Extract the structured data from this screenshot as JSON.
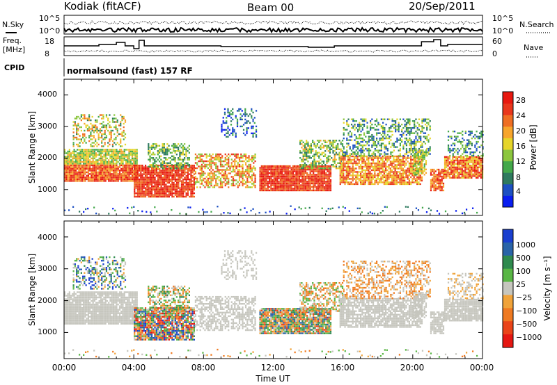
{
  "header": {
    "station": "Kodiak (fitACF)",
    "beam": "Beam 00",
    "date": "20/Sep/2011"
  },
  "strip_labels": {
    "nsky": "N.Sky",
    "nsearch": "N.Search",
    "freq": "Freq.",
    "freq_unit": "[MHz]",
    "nave": "Nave",
    "cpid": "CPID",
    "cpid_text": "normalsound (fast) 157 RF",
    "noise_ticks_left": [
      "10^5",
      "10^0"
    ],
    "noise_ticks_right": [
      "10^5",
      "10^0"
    ],
    "freq_ticks": [
      "18",
      "8"
    ],
    "nave_ticks": [
      "60",
      "0"
    ]
  },
  "xaxis": {
    "label": "Time UT",
    "ticks": [
      "00:00",
      "04:00",
      "08:00",
      "12:00",
      "16:00",
      "20:00",
      "00:00"
    ]
  },
  "chart_data": [
    {
      "type": "heatmap",
      "name": "power",
      "ylabel": "Slant Range [km]",
      "xlim_hours": [
        0,
        24
      ],
      "ylim": [
        180,
        4500
      ],
      "yticks": [
        "1000",
        "2000",
        "3000",
        "4000"
      ],
      "colorbar_label": "Power [dB]",
      "colorbar_ticks": [
        "4",
        "8",
        "12",
        "16",
        "20",
        "24",
        "28"
      ],
      "colors": [
        "#0a1ef0",
        "#1d50c2",
        "#2e7a5e",
        "#43a84a",
        "#8cc63e",
        "#e6d52a",
        "#f7a52c",
        "#ef6e23",
        "#e9371c",
        "#e8180f"
      ]
    },
    {
      "type": "heatmap",
      "name": "velocity",
      "ylabel": "Slant Range [km]",
      "xlim_hours": [
        0,
        24
      ],
      "ylim": [
        180,
        4500
      ],
      "yticks": [
        "1000",
        "2000",
        "3000",
        "4000"
      ],
      "colorbar_label": "Velocity [m s⁻¹]",
      "colorbar_ticks": [
        "1000",
        "500",
        "100",
        "25",
        "−25",
        "−100",
        "−500",
        "−1000"
      ],
      "colors": [
        "#1a3fcf",
        "#2a64a8",
        "#2f8a4e",
        "#59b645",
        "#c6c6be",
        "#f0a33a",
        "#ef7a22",
        "#ea4419",
        "#e51712"
      ]
    }
  ]
}
